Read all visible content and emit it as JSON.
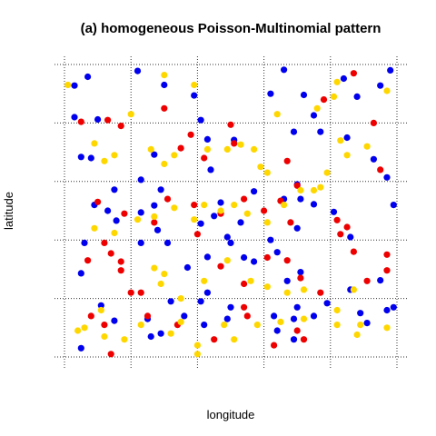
{
  "chart_data": {
    "type": "scatter",
    "title": "(a) homogeneous Poisson-Multinomial pattern",
    "xlabel": "longitude",
    "ylabel": "latitude",
    "xlim": [
      0,
      5
    ],
    "ylim": [
      0,
      5
    ],
    "grid": true,
    "grid_style": "dotted",
    "axis_ticks": "unlabeled",
    "colors": {
      "blue": "#0000ee",
      "red": "#ee0000",
      "yellow": "#ffd700"
    },
    "series": [
      {
        "color": "blue",
        "points": [
          [
            0.15,
            4.64
          ],
          [
            0.35,
            4.79
          ],
          [
            0.15,
            4.1
          ],
          [
            0.5,
            4.06
          ],
          [
            0.25,
            3.42
          ],
          [
            0.4,
            3.4
          ],
          [
            1.1,
            4.89
          ],
          [
            1.5,
            4.65
          ],
          [
            1.35,
            3.46
          ],
          [
            1.15,
            3.03
          ],
          [
            1.95,
            4.47
          ],
          [
            2.05,
            4.05
          ],
          [
            2.15,
            3.72
          ],
          [
            2.55,
            3.71
          ],
          [
            2.2,
            3.2
          ],
          [
            3.1,
            4.5
          ],
          [
            3.3,
            4.91
          ],
          [
            3.6,
            4.48
          ],
          [
            3.45,
            3.85
          ],
          [
            3.75,
            4.13
          ],
          [
            3.85,
            3.85
          ],
          [
            4.2,
            4.76
          ],
          [
            4.75,
            4.64
          ],
          [
            4.4,
            4.45
          ],
          [
            4.9,
            4.9
          ],
          [
            4.25,
            3.75
          ],
          [
            4.65,
            3.38
          ],
          [
            4.85,
            3.07
          ],
          [
            0.45,
            2.6
          ],
          [
            0.65,
            2.5
          ],
          [
            0.75,
            2.86
          ],
          [
            0.78,
            2.33
          ],
          [
            1.15,
            2.47
          ],
          [
            1.35,
            2.59
          ],
          [
            1.45,
            2.86
          ],
          [
            1.4,
            2.17
          ],
          [
            2.05,
            2.28
          ],
          [
            2.35,
            2.64
          ],
          [
            2.25,
            2.41
          ],
          [
            2.65,
            2.3
          ],
          [
            2.85,
            2.83
          ],
          [
            3.5,
            2.95
          ],
          [
            3.3,
            2.7
          ],
          [
            3.5,
            2.2
          ],
          [
            3.55,
            2.7
          ],
          [
            3.75,
            2.61
          ],
          [
            4.05,
            2.48
          ],
          [
            4.3,
            2.05
          ],
          [
            4.95,
            2.6
          ],
          [
            0.25,
            1.43
          ],
          [
            0.3,
            1.95
          ],
          [
            1.15,
            1.95
          ],
          [
            1.55,
            1.95
          ],
          [
            1.85,
            1.53
          ],
          [
            2.15,
            1.71
          ],
          [
            2.45,
            2.05
          ],
          [
            2.5,
            1.95
          ],
          [
            2.7,
            1.7
          ],
          [
            2.85,
            1.63
          ],
          [
            3.2,
            1.79
          ],
          [
            3.35,
            1.3
          ],
          [
            3.55,
            1.45
          ],
          [
            3.1,
            2.0
          ],
          [
            4.3,
            1.15
          ],
          [
            4.75,
            1.31
          ],
          [
            4.95,
            0.85
          ],
          [
            0.55,
            0.88
          ],
          [
            0.75,
            0.62
          ],
          [
            0.25,
            0.15
          ],
          [
            1.25,
            0.65
          ],
          [
            1.45,
            0.4
          ],
          [
            1.8,
            0.7
          ],
          [
            1.6,
            0.95
          ],
          [
            2.05,
            0.95
          ],
          [
            2.15,
            1.1
          ],
          [
            2.1,
            0.55
          ],
          [
            2.5,
            0.85
          ],
          [
            2.45,
            0.65
          ],
          [
            3.2,
            0.45
          ],
          [
            3.15,
            0.7
          ],
          [
            3.5,
            0.85
          ],
          [
            3.45,
            0.65
          ],
          [
            3.75,
            0.7
          ],
          [
            3.95,
            0.92
          ],
          [
            4.55,
            0.58
          ],
          [
            4.45,
            0.75
          ],
          [
            4.85,
            0.8
          ],
          [
            1.3,
            0.35
          ],
          [
            3.45,
            0.3
          ]
        ]
      },
      {
        "color": "red",
        "points": [
          [
            0.25,
            4.02
          ],
          [
            0.65,
            4.05
          ],
          [
            0.85,
            3.95
          ],
          [
            1.5,
            4.25
          ],
          [
            1.75,
            3.57
          ],
          [
            1.9,
            3.8
          ],
          [
            2.1,
            3.4
          ],
          [
            2.5,
            3.97
          ],
          [
            2.55,
            3.65
          ],
          [
            3.35,
            3.35
          ],
          [
            3.9,
            4.4
          ],
          [
            4.35,
            4.85
          ],
          [
            4.65,
            4.0
          ],
          [
            4.75,
            3.2
          ],
          [
            0.5,
            2.65
          ],
          [
            0.9,
            2.45
          ],
          [
            1.35,
            2.3
          ],
          [
            1.55,
            2.7
          ],
          [
            1.95,
            2.6
          ],
          [
            2.0,
            2.1
          ],
          [
            2.35,
            2.45
          ],
          [
            2.7,
            2.7
          ],
          [
            3.0,
            2.5
          ],
          [
            3.25,
            2.67
          ],
          [
            3.5,
            2.93
          ],
          [
            3.4,
            2.3
          ],
          [
            4.1,
            2.34
          ],
          [
            4.25,
            2.22
          ],
          [
            4.85,
            1.75
          ],
          [
            4.85,
            1.48
          ],
          [
            0.35,
            1.65
          ],
          [
            0.7,
            1.77
          ],
          [
            0.85,
            1.63
          ],
          [
            0.6,
            1.95
          ],
          [
            0.85,
            1.48
          ],
          [
            1.0,
            1.1
          ],
          [
            2.35,
            1.55
          ],
          [
            2.7,
            1.25
          ],
          [
            3.05,
            1.7
          ],
          [
            3.35,
            1.65
          ],
          [
            3.55,
            1.35
          ],
          [
            3.85,
            1.1
          ],
          [
            4.15,
            2.1
          ],
          [
            4.35,
            1.8
          ],
          [
            4.55,
            1.3
          ],
          [
            0.4,
            0.7
          ],
          [
            0.6,
            0.55
          ],
          [
            1.15,
            1.1
          ],
          [
            1.25,
            0.7
          ],
          [
            1.7,
            0.55
          ],
          [
            2.7,
            0.85
          ],
          [
            2.75,
            0.7
          ],
          [
            3.5,
            0.45
          ],
          [
            3.6,
            0.3
          ],
          [
            2.25,
            0.3
          ],
          [
            0.7,
            0.05
          ],
          [
            3.15,
            0.2
          ]
        ]
      },
      {
        "color": "yellow",
        "points": [
          [
            0.05,
            4.65
          ],
          [
            1.5,
            4.82
          ],
          [
            1.95,
            4.65
          ],
          [
            1.0,
            4.15
          ],
          [
            0.45,
            3.65
          ],
          [
            0.75,
            3.45
          ],
          [
            0.6,
            3.35
          ],
          [
            1.3,
            3.55
          ],
          [
            1.5,
            3.3
          ],
          [
            1.65,
            3.45
          ],
          [
            2.15,
            3.55
          ],
          [
            2.45,
            3.55
          ],
          [
            2.65,
            3.63
          ],
          [
            2.85,
            3.55
          ],
          [
            2.95,
            3.25
          ],
          [
            3.05,
            3.15
          ],
          [
            3.2,
            4.15
          ],
          [
            3.8,
            4.25
          ],
          [
            4.05,
            4.45
          ],
          [
            4.1,
            4.7
          ],
          [
            4.15,
            3.7
          ],
          [
            4.25,
            3.45
          ],
          [
            4.55,
            3.6
          ],
          [
            4.85,
            4.55
          ],
          [
            0.45,
            2.2
          ],
          [
            0.75,
            2.12
          ],
          [
            1.1,
            2.35
          ],
          [
            1.35,
            2.4
          ],
          [
            1.65,
            2.55
          ],
          [
            1.95,
            2.35
          ],
          [
            2.1,
            2.6
          ],
          [
            2.35,
            2.5
          ],
          [
            2.55,
            2.6
          ],
          [
            2.75,
            2.45
          ],
          [
            3.05,
            2.3
          ],
          [
            3.3,
            2.6
          ],
          [
            3.55,
            2.85
          ],
          [
            3.75,
            2.85
          ],
          [
            3.85,
            2.9
          ],
          [
            3.95,
            3.15
          ],
          [
            1.35,
            1.52
          ],
          [
            1.5,
            1.42
          ],
          [
            1.45,
            1.25
          ],
          [
            1.75,
            1.0
          ],
          [
            2.1,
            1.3
          ],
          [
            2.45,
            1.65
          ],
          [
            2.8,
            1.3
          ],
          [
            3.05,
            1.2
          ],
          [
            3.35,
            1.1
          ],
          [
            3.6,
            1.15
          ],
          [
            4.1,
            0.8
          ],
          [
            4.35,
            1.15
          ],
          [
            4.45,
            0.55
          ],
          [
            0.2,
            0.45
          ],
          [
            0.3,
            0.5
          ],
          [
            0.55,
            0.8
          ],
          [
            0.6,
            0.35
          ],
          [
            0.9,
            0.3
          ],
          [
            1.15,
            0.55
          ],
          [
            1.6,
            0.4
          ],
          [
            2.0,
            0.2
          ],
          [
            2.0,
            0.05
          ],
          [
            2.4,
            0.55
          ],
          [
            2.55,
            0.3
          ],
          [
            2.9,
            0.55
          ],
          [
            3.25,
            0.6
          ],
          [
            3.6,
            0.65
          ],
          [
            4.1,
            0.55
          ],
          [
            4.4,
            0.38
          ],
          [
            4.85,
            0.5
          ],
          [
            1.75,
            0.6
          ]
        ]
      }
    ]
  }
}
